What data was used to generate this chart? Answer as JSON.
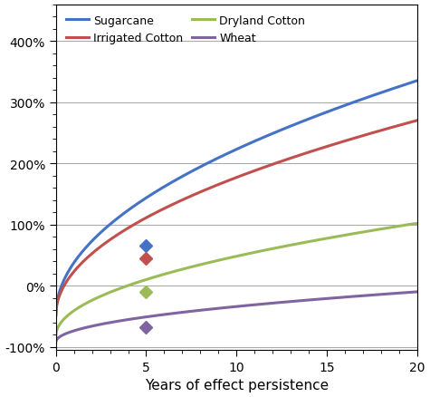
{
  "xlabel": "Years of effect persistence",
  "xlim": [
    0,
    20
  ],
  "ylim": [
    -1.05,
    4.6
  ],
  "xticks": [
    0,
    5,
    10,
    15,
    20
  ],
  "yticks": [
    -1.0,
    0.0,
    1.0,
    2.0,
    3.0,
    4.0
  ],
  "ytick_labels": [
    "-100%",
    "0%",
    "100%",
    "200%",
    "300%",
    "400%"
  ],
  "series": [
    {
      "label": "Sugarcane",
      "color": "#4472C4",
      "x0": 0,
      "y0": -0.48,
      "x1": 20,
      "y1": 3.35,
      "marker_x": 5,
      "marker_y": 0.65
    },
    {
      "label": "Irrigated Cotton",
      "color": "#C0504D",
      "x0": 0,
      "y0": -0.48,
      "x1": 20,
      "y1": 2.7,
      "marker_x": 5,
      "marker_y": 0.44
    },
    {
      "label": "Dryland Cotton",
      "color": "#9BBB59",
      "x0": 0,
      "y0": -0.82,
      "x1": 20,
      "y1": 1.02,
      "marker_x": 5,
      "marker_y": -0.1
    },
    {
      "label": "Wheat",
      "color": "#8064A2",
      "x0": 0,
      "y0": -0.92,
      "x1": 20,
      "y1": -0.1,
      "marker_x": 5,
      "marker_y": -0.68
    }
  ],
  "legend_cols": 2,
  "background_color": "#FFFFFF",
  "grid_color": "#AAAAAA",
  "linewidth": 2.2,
  "markersize": 7
}
